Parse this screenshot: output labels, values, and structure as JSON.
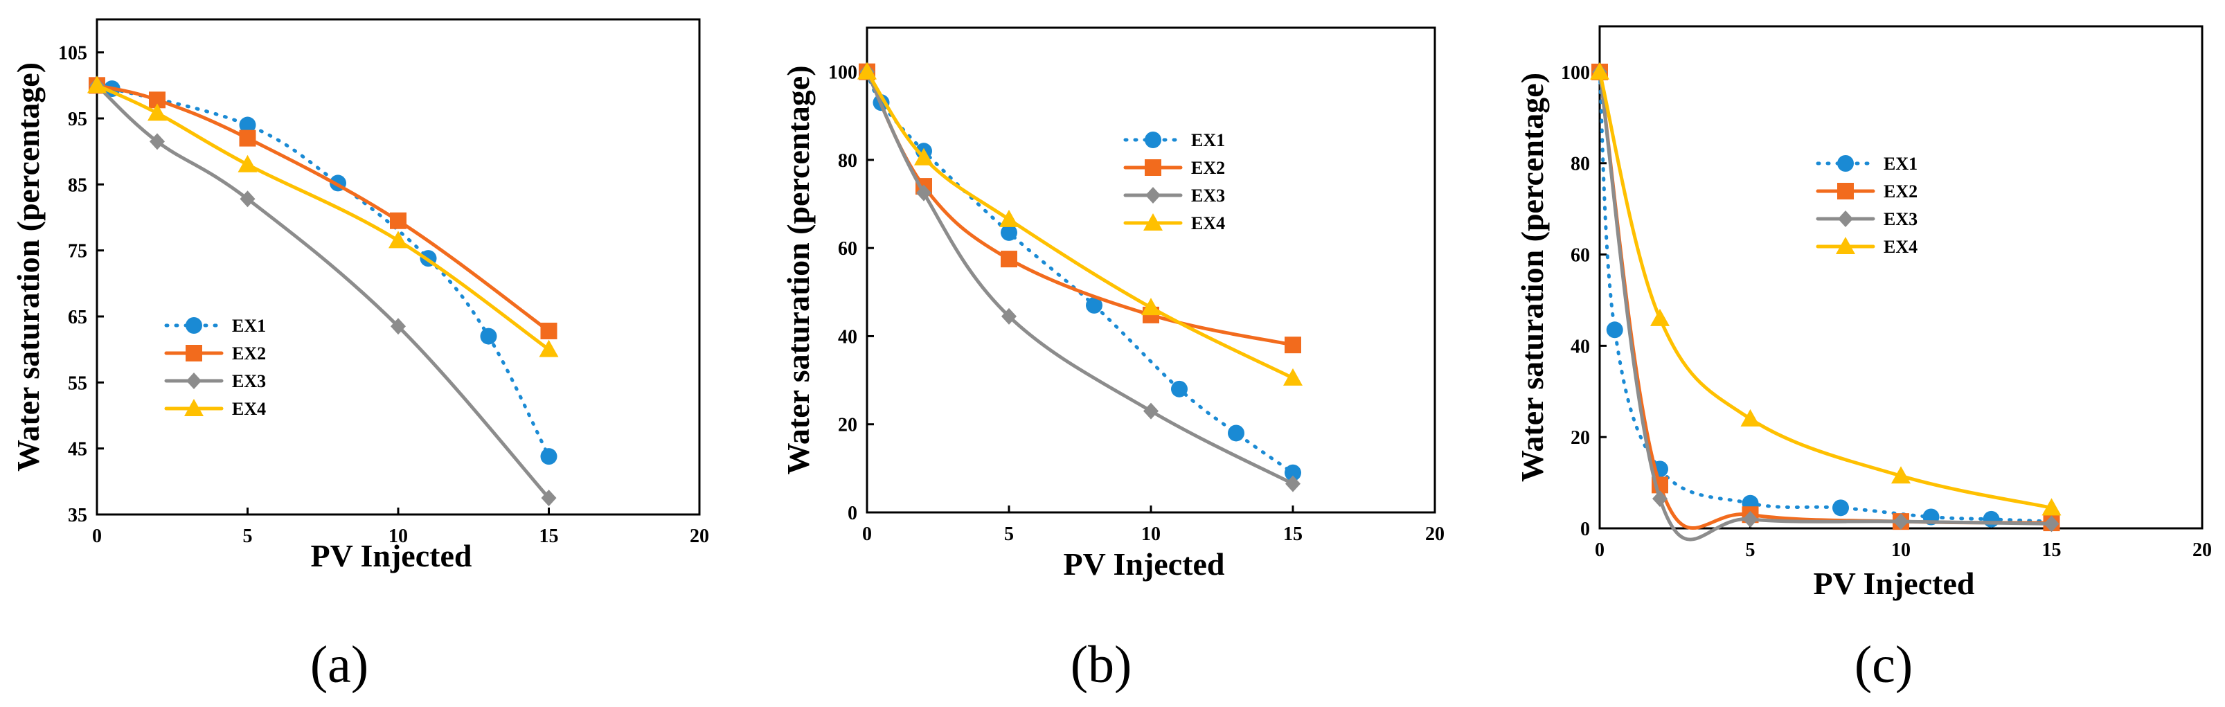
{
  "chart_data": [
    {
      "type": "line",
      "panel_label": "(a)",
      "xlabel": "PV Injected",
      "ylabel": "Water saturation (percentage)",
      "xlim": [
        0,
        20
      ],
      "ylim": [
        35,
        110
      ],
      "xticks": [
        "0",
        "5",
        "10",
        "15",
        "20"
      ],
      "yticks": [
        "35",
        "45",
        "55",
        "65",
        "75",
        "85",
        "95",
        "105"
      ],
      "legend_position": "middle-left",
      "series": [
        {
          "name": "EX1",
          "x": [
            0,
            0.5,
            5,
            8,
            11,
            13,
            15
          ],
          "values": [
            100,
            99.5,
            94,
            85.2,
            73.8,
            62,
            43.8
          ]
        },
        {
          "name": "EX2",
          "x": [
            0,
            2,
            5,
            10,
            15
          ],
          "values": [
            100,
            97.8,
            92,
            79.5,
            62.8
          ]
        },
        {
          "name": "EX3",
          "x": [
            0,
            2,
            5,
            10,
            15
          ],
          "values": [
            100,
            91.5,
            82.8,
            63.5,
            37.5
          ]
        },
        {
          "name": "EX4",
          "x": [
            0,
            2,
            5,
            10,
            15
          ],
          "values": [
            100,
            95.8,
            88,
            76.5,
            60
          ]
        }
      ]
    },
    {
      "type": "line",
      "panel_label": "(b)",
      "xlabel": "PV Injected",
      "ylabel": "Water saturation (percentage)",
      "xlim": [
        0,
        20
      ],
      "ylim": [
        0,
        110
      ],
      "xticks": [
        "0",
        "5",
        "10",
        "15",
        "20"
      ],
      "yticks": [
        "0",
        "20",
        "40",
        "60",
        "80",
        "100"
      ],
      "legend_position": "top-right",
      "series": [
        {
          "name": "EX1",
          "x": [
            0,
            0.5,
            2,
            5,
            8,
            11,
            13,
            15
          ],
          "values": [
            100,
            93,
            82,
            63.5,
            47,
            28,
            18,
            9
          ]
        },
        {
          "name": "EX2",
          "x": [
            0,
            2,
            5,
            10,
            15
          ],
          "values": [
            100,
            74,
            57.5,
            44.8,
            38
          ]
        },
        {
          "name": "EX3",
          "x": [
            0,
            2,
            5,
            10,
            15
          ],
          "values": [
            100,
            72.5,
            44.5,
            23,
            6.5
          ]
        },
        {
          "name": "EX4",
          "x": [
            0,
            2,
            5,
            10,
            15
          ],
          "values": [
            100,
            80.5,
            66.5,
            46.5,
            30.5
          ]
        }
      ]
    },
    {
      "type": "line",
      "panel_label": "(c)",
      "xlabel": "PV Injected",
      "ylabel": "Water saturation (percentage)",
      "xlim": [
        0,
        20
      ],
      "ylim": [
        0,
        110
      ],
      "xticks": [
        "0",
        "5",
        "10",
        "15",
        "20"
      ],
      "yticks": [
        "0",
        "20",
        "40",
        "60",
        "80",
        "100"
      ],
      "legend_position": "top-left",
      "series": [
        {
          "name": "EX1",
          "x": [
            0,
            0.5,
            2,
            5,
            8,
            11,
            13,
            15
          ],
          "values": [
            100,
            43.5,
            13,
            5.5,
            4.5,
            2.5,
            2,
            1.5
          ]
        },
        {
          "name": "EX2",
          "x": [
            0,
            2,
            5,
            10,
            15
          ],
          "values": [
            100,
            9.5,
            3,
            1.5,
            1.2
          ]
        },
        {
          "name": "EX3",
          "x": [
            0,
            2,
            5,
            10,
            15
          ],
          "values": [
            100,
            6.5,
            2,
            1.5,
            1
          ]
        },
        {
          "name": "EX4",
          "x": [
            0,
            2,
            5,
            10,
            15
          ],
          "values": [
            100,
            46,
            24,
            11.5,
            4.5
          ]
        }
      ]
    }
  ],
  "styles": {
    "EX1": {
      "color": "#1a8ad4",
      "marker": "circle",
      "dash": "dotted"
    },
    "EX2": {
      "color": "#f26b1d",
      "marker": "square",
      "dash": "solid"
    },
    "EX3": {
      "color": "#8c8c8c",
      "marker": "diamond",
      "dash": "solid"
    },
    "EX4": {
      "color": "#ffc000",
      "marker": "triangle",
      "dash": "solid"
    }
  }
}
